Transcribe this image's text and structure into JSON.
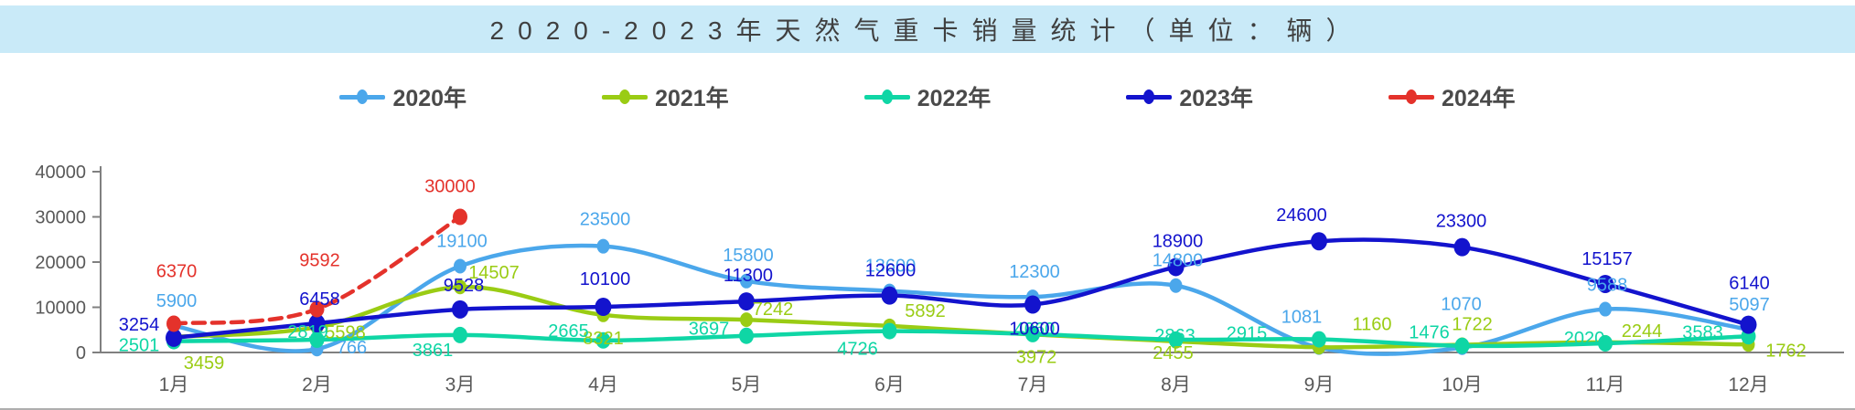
{
  "title": "2020-2023年天然气重卡销量统计（单位：辆）",
  "chart_data": {
    "type": "line",
    "title": "2020-2023年天然气重卡销量统计（单位：辆）",
    "categories": [
      "1月",
      "2月",
      "3月",
      "4月",
      "5月",
      "6月",
      "7月",
      "8月",
      "9月",
      "10月",
      "11月",
      "12月"
    ],
    "series": [
      {
        "name": "2020年",
        "color": "#4ba7eb",
        "dashed": false,
        "values": [
          5900,
          766,
          19100,
          23500,
          15800,
          13600,
          12300,
          14800,
          1081,
          1070,
          9588,
          5097
        ]
      },
      {
        "name": "2021年",
        "color": "#9acc14",
        "dashed": false,
        "values": [
          3459,
          5598,
          14507,
          8321,
          7242,
          5892,
          3972,
          2455,
          1160,
          1722,
          2244,
          1762
        ]
      },
      {
        "name": "2022年",
        "color": "#0fd6a5",
        "dashed": false,
        "values": [
          2501,
          2819,
          3861,
          2665,
          3697,
          4726,
          4060,
          2863,
          2915,
          1476,
          2020,
          3583
        ]
      },
      {
        "name": "2023年",
        "color": "#1313cd",
        "dashed": false,
        "values": [
          3254,
          6458,
          9528,
          10100,
          11300,
          12600,
          10600,
          18900,
          24600,
          23300,
          15157,
          6140
        ]
      },
      {
        "name": "2024年",
        "color": "#e4322b",
        "dashed": true,
        "values": [
          6370,
          9592,
          30000,
          null,
          null,
          null,
          null,
          null,
          null,
          null,
          null,
          null
        ]
      }
    ],
    "xlabel": "",
    "ylabel": "",
    "ylim": [
      0,
      40000
    ],
    "yticks": [
      0,
      10000,
      20000,
      30000,
      40000
    ],
    "ytick_labels": [
      "0",
      "10000",
      "20000",
      "30000",
      "40000"
    ],
    "grid": false,
    "legend_position": "top"
  },
  "colors": {
    "title_bg": "#c9eaf8",
    "title_text": "#3f3f3f",
    "axis": "#808080",
    "tick_text": "#595959"
  }
}
